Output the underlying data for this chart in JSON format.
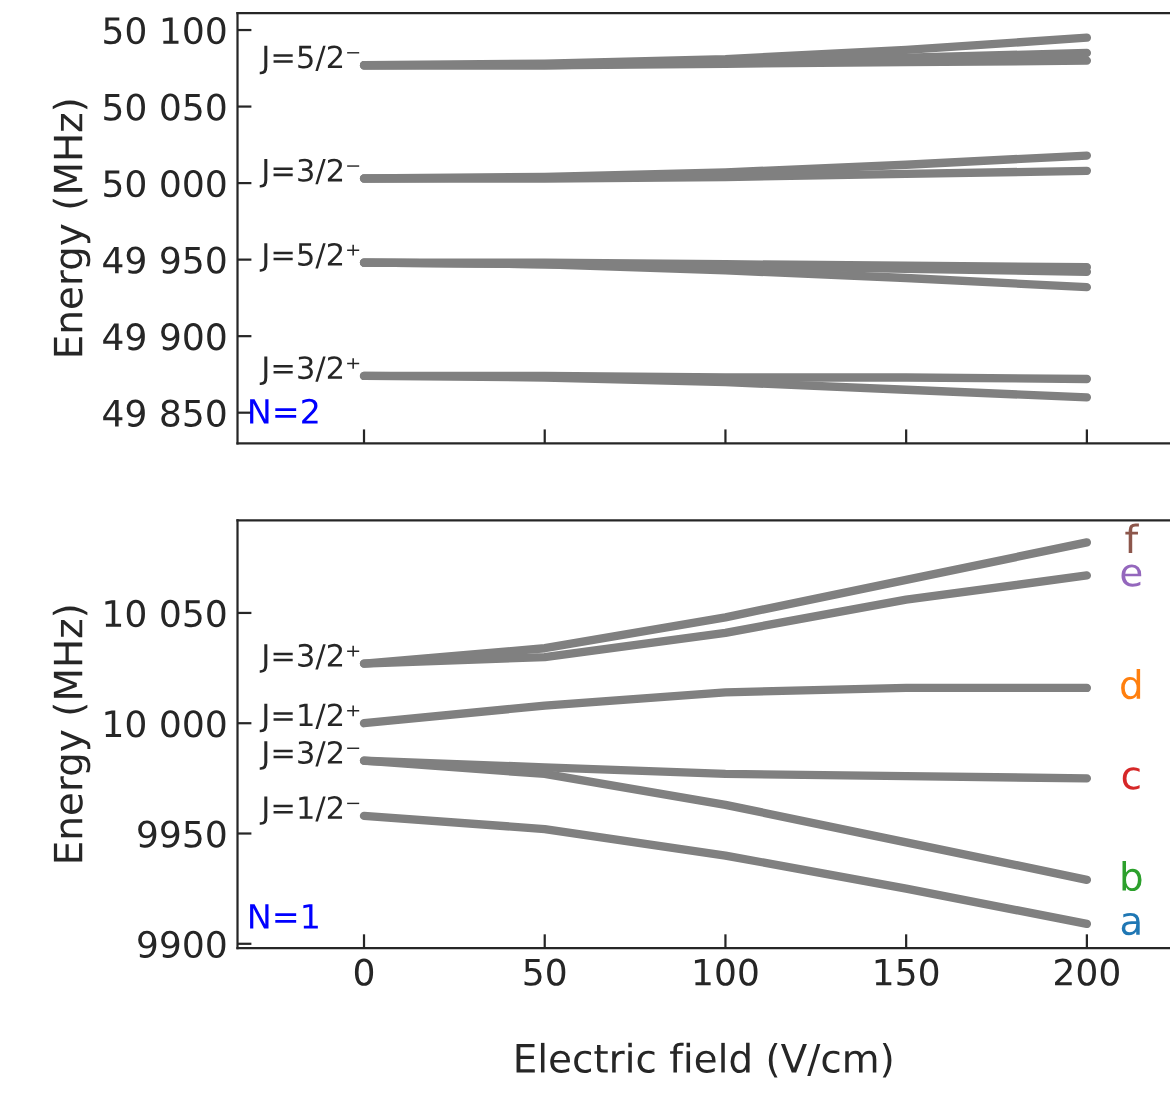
{
  "chart_data": [
    {
      "type": "line",
      "ylabel": "Energy (MHz)",
      "xlim": [
        -35,
        223
      ],
      "xticks": [
        {
          "value": 0,
          "label": null
        },
        {
          "value": 50,
          "label": null
        },
        {
          "value": 100,
          "label": null
        },
        {
          "value": 150,
          "label": null
        },
        {
          "value": 200,
          "label": null
        }
      ],
      "ylim": [
        49830,
        50111
      ],
      "yticks": [
        {
          "value": 49850,
          "label": "49 850"
        },
        {
          "value": 49900,
          "label": "49 900"
        },
        {
          "value": 49950,
          "label": "49 950"
        },
        {
          "value": 50000,
          "label": "50 000"
        },
        {
          "value": 50050,
          "label": "50 050"
        },
        {
          "value": 50100,
          "label": "50 100"
        }
      ],
      "tick_labels": "y",
      "grid": false,
      "legend": false,
      "x": [
        0,
        50,
        100,
        150,
        200
      ],
      "series": [
        {
          "color": "#808080",
          "values": [
            50077,
            50078,
            50081,
            50087,
            50095
          ]
        },
        {
          "color": "#808080",
          "values": [
            50077,
            50077,
            50079,
            50082,
            50085
          ]
        },
        {
          "color": "#808080",
          "values": [
            50077,
            50077,
            50078,
            50079,
            50080
          ]
        },
        {
          "color": "#808080",
          "values": [
            50003,
            50004,
            50007,
            50012,
            50018
          ]
        },
        {
          "color": "#808080",
          "values": [
            50003,
            50003,
            50004,
            50006,
            50008
          ]
        },
        {
          "color": "#808080",
          "values": [
            49948,
            49948,
            49947,
            49946,
            49945
          ]
        },
        {
          "color": "#808080",
          "values": [
            49948,
            49947,
            49946,
            49944,
            49942
          ]
        },
        {
          "color": "#808080",
          "values": [
            49948,
            49947,
            49943,
            49938,
            49932
          ]
        },
        {
          "color": "#808080",
          "values": [
            49874,
            49874,
            49873,
            49873,
            49872
          ]
        },
        {
          "color": "#808080",
          "values": [
            49874,
            49873,
            49870,
            49865,
            49860
          ]
        }
      ],
      "annotations": [
        "J=5/2⁻",
        "J=3/2⁻",
        "J=5/2⁺",
        "J=3/2⁺",
        "N=2"
      ]
    },
    {
      "type": "line",
      "xlabel": "Electric field (V/cm)",
      "ylabel": "Energy (MHz)",
      "xlim": [
        -35,
        223
      ],
      "xticks": [
        0,
        50,
        100,
        150,
        200
      ],
      "ylim": [
        9898,
        10092
      ],
      "yticks": [
        {
          "value": 9900,
          "label": "9900"
        },
        {
          "value": 9950,
          "label": "9950"
        },
        {
          "value": 10000,
          "label": "10 000"
        },
        {
          "value": 10050,
          "label": "10 050"
        }
      ],
      "grid": false,
      "legend": false,
      "x": [
        0,
        50,
        100,
        150,
        200
      ],
      "series": [
        {
          "name": "a",
          "color": "#808080",
          "values": [
            9958,
            9952,
            9940,
            9925,
            9909
          ]
        },
        {
          "name": "b",
          "color": "#808080",
          "values": [
            9983,
            9977,
            9963,
            9946,
            9929
          ]
        },
        {
          "name": "c",
          "color": "#808080",
          "values": [
            9983,
            9980,
            9977,
            9976,
            9975
          ]
        },
        {
          "name": "d",
          "color": "#808080",
          "values": [
            10000,
            10008,
            10014,
            10016,
            10016
          ]
        },
        {
          "name": "e",
          "color": "#808080",
          "values": [
            10027,
            10030,
            10041,
            10056,
            10067
          ]
        },
        {
          "name": "f",
          "color": "#808080",
          "values": [
            10027,
            10034,
            10048,
            10065,
            10082
          ]
        }
      ],
      "annotations": [
        "J=3/2⁺",
        "J=1/2⁺",
        "J=3/2⁻",
        "J=1/2⁻",
        "N=1"
      ]
    }
  ]
}
